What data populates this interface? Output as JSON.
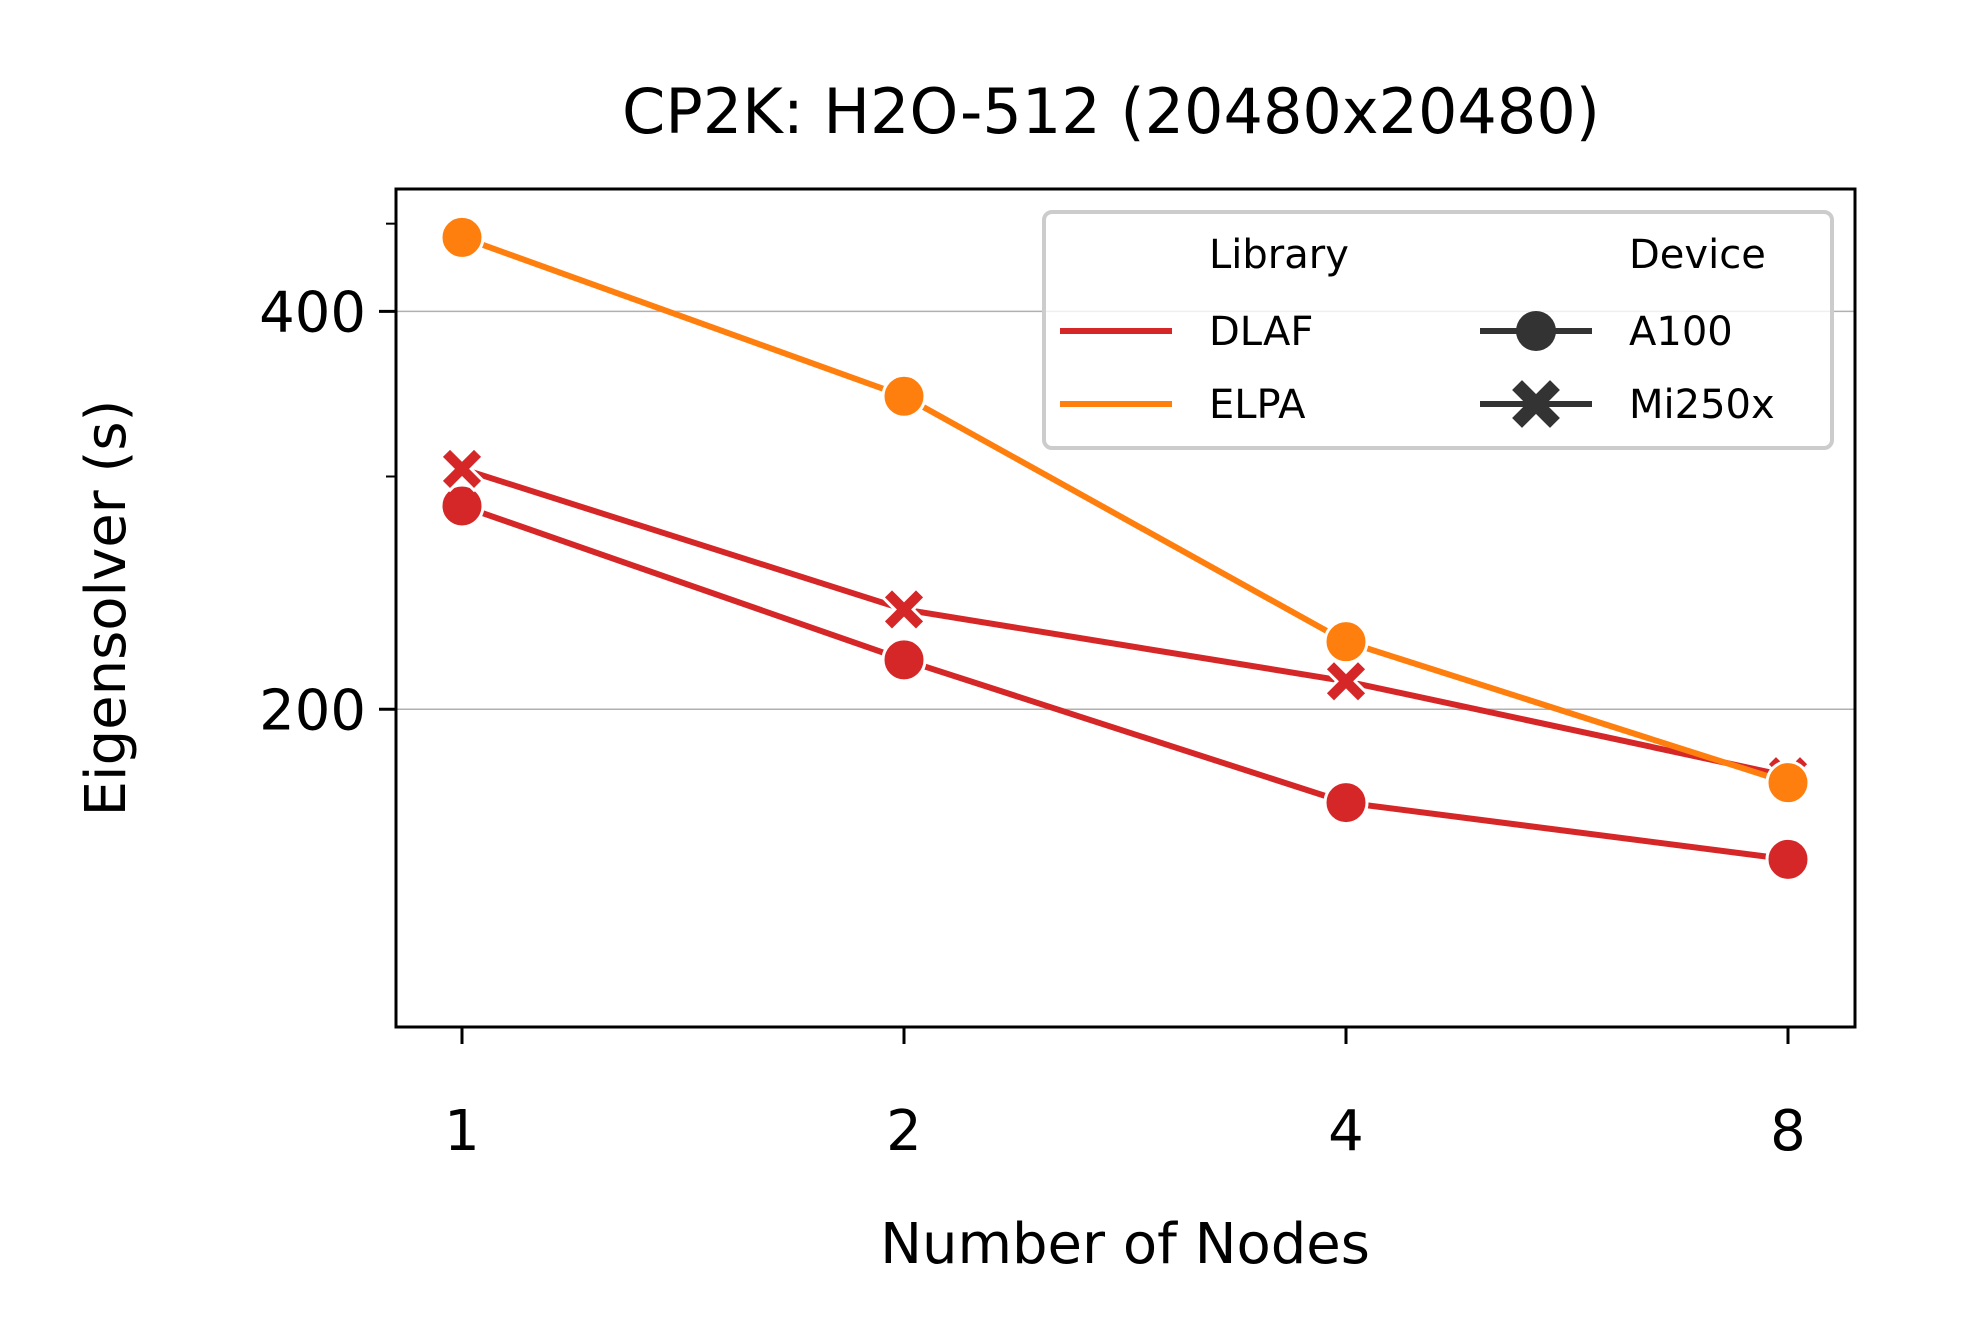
{
  "chart_data": {
    "type": "line",
    "title": "CP2K: H2O-512 (20480x20480)",
    "xlabel": "Number of Nodes",
    "ylabel": "Eigensolver (s)",
    "x_scale": "log2",
    "y_scale": "log",
    "x": [
      1,
      2,
      4,
      8
    ],
    "x_tick_labels": [
      "1",
      "2",
      "4",
      "8"
    ],
    "y_ticks": [
      200,
      400
    ],
    "y_tick_labels": [
      "200",
      "400"
    ],
    "y_minor_ticks": [
      300,
      466
    ],
    "ylim": [
      115,
      495
    ],
    "grid": "horizontal at major y ticks",
    "legend": {
      "placement": "top-right",
      "library_title": "Library",
      "device_title": "Device",
      "library_entries": [
        {
          "label": "DLAF",
          "color": "#d62728"
        },
        {
          "label": "ELPA",
          "color": "#ff7f0e"
        }
      ],
      "device_entries": [
        {
          "label": "A100",
          "marker": "circle"
        },
        {
          "label": "Mi250x",
          "marker": "x"
        }
      ]
    },
    "series": [
      {
        "library": "DLAF",
        "device": "A100",
        "color": "#d62728",
        "marker": "circle",
        "values": [
          285,
          218,
          170,
          154
        ]
      },
      {
        "library": "DLAF",
        "device": "Mi250x",
        "color": "#d62728",
        "marker": "x",
        "values": [
          304,
          238,
          210,
          178
        ]
      },
      {
        "library": "ELPA",
        "device": "A100",
        "color": "#ff7f0e",
        "marker": "circle",
        "values": [
          455,
          345,
          225,
          176
        ]
      }
    ]
  }
}
